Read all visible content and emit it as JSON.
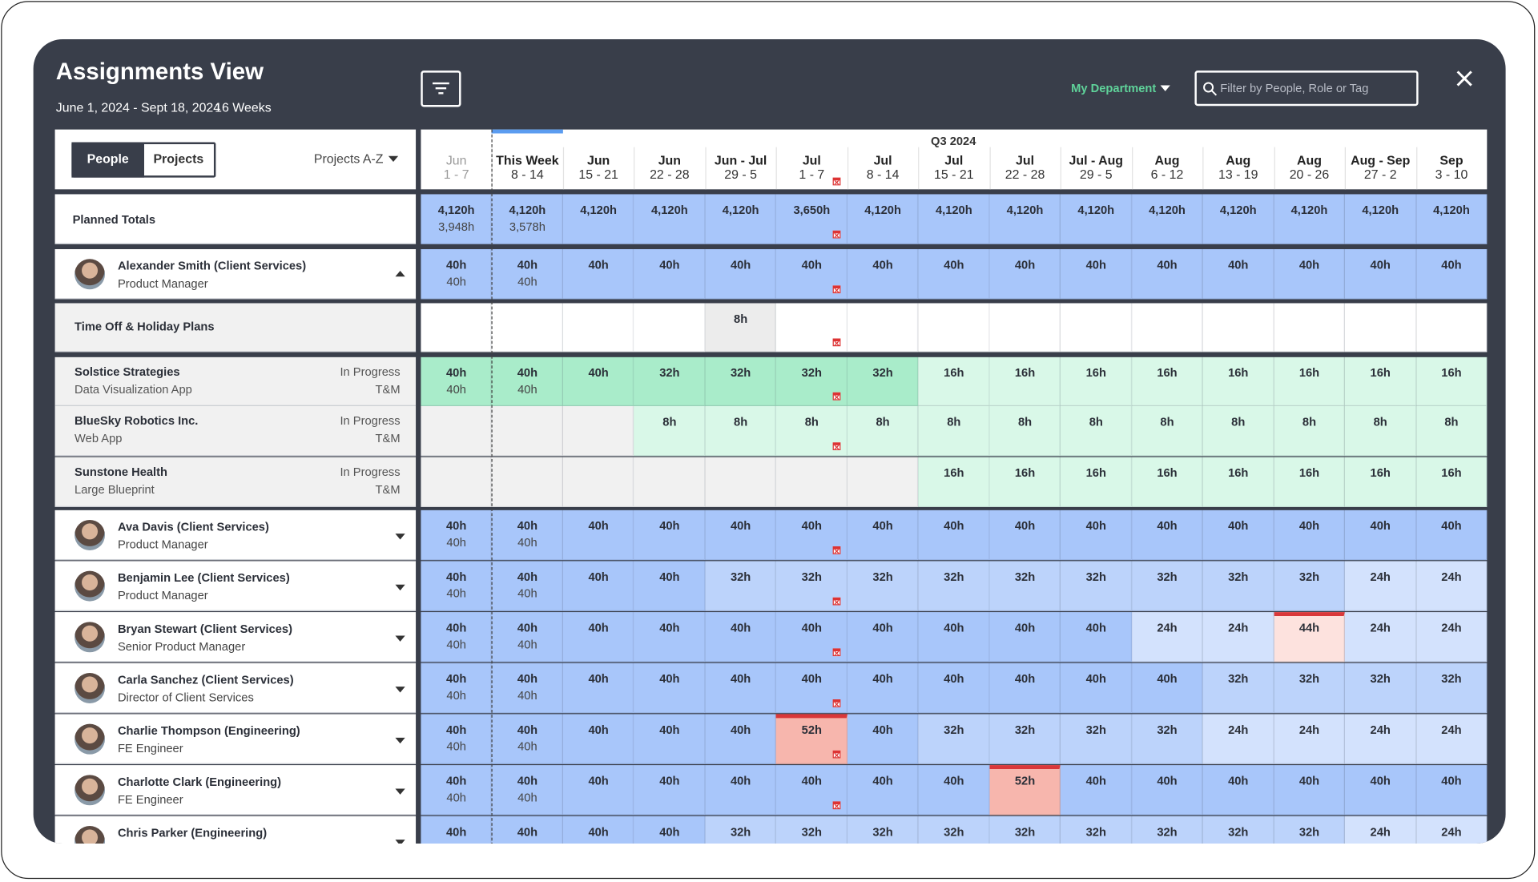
{
  "header": {
    "title": "Assignments View",
    "date_range": "June 1, 2024 - Sept 18, 2024",
    "weeks": "16 Weeks",
    "department": "My Department",
    "search_placeholder": "Filter by People, Role or Tag"
  },
  "toolbar": {
    "view_toggle": [
      "People",
      "Projects"
    ],
    "sort": "Projects A-Z"
  },
  "timeline": {
    "quarter": "Q3 2024",
    "weeks": [
      {
        "month": "Jun",
        "days": "1 - 7"
      },
      {
        "month": "This Week",
        "days": "8 - 14"
      },
      {
        "month": "Jun",
        "days": "15 - 21"
      },
      {
        "month": "Jun",
        "days": "22 - 28"
      },
      {
        "month": "Jun - Jul",
        "days": "29 - 5"
      },
      {
        "month": "Jul",
        "days": "1 - 7"
      },
      {
        "month": "Jul",
        "days": "8 - 14"
      },
      {
        "month": "Jul",
        "days": "15 - 21"
      },
      {
        "month": "Jul",
        "days": "22 - 28"
      },
      {
        "month": "Jul - Aug",
        "days": "29 - 5"
      },
      {
        "month": "Aug",
        "days": "6 - 12"
      },
      {
        "month": "Aug",
        "days": "13 - 19"
      },
      {
        "month": "Aug",
        "days": "20 - 26"
      },
      {
        "month": "Aug - Sep",
        "days": "27 - 2"
      },
      {
        "month": "Sep",
        "days": "3 - 10"
      }
    ]
  },
  "rows": [
    {
      "kind": "totals",
      "label": "Planned Totals",
      "cells": [
        [
          "4,120h",
          "3,948h"
        ],
        [
          "4,120h",
          "3,578h"
        ],
        [
          "4,120h"
        ],
        [
          "4,120h"
        ],
        [
          "4,120h"
        ],
        [
          "3,650h"
        ],
        [
          "4,120h"
        ],
        [
          "4,120h"
        ],
        [
          "4,120h"
        ],
        [
          "4,120h"
        ],
        [
          "4,120h"
        ],
        [
          "4,120h"
        ],
        [
          "4,120h"
        ],
        [
          "4,120h"
        ],
        [
          "4,120h"
        ]
      ]
    },
    {
      "kind": "person",
      "name": "Alexander Smith (Client Services)",
      "role": "Product Manager",
      "expanded": true,
      "cells": [
        [
          "40h",
          "40h"
        ],
        [
          "40h",
          "40h"
        ],
        [
          "40h"
        ],
        [
          "40h"
        ],
        [
          "40h"
        ],
        [
          "40h"
        ],
        [
          "40h"
        ],
        [
          "40h"
        ],
        [
          "40h"
        ],
        [
          "40h"
        ],
        [
          "40h"
        ],
        [
          "40h"
        ],
        [
          "40h"
        ],
        [
          "40h"
        ],
        [
          "40h"
        ]
      ]
    },
    {
      "kind": "time_off",
      "label": "Time Off & Holiday Plans",
      "cells": [
        [],
        [],
        [],
        [],
        [
          "8h"
        ],
        [],
        [],
        [],
        [],
        [],
        [],
        [],
        [],
        [],
        []
      ]
    },
    {
      "kind": "project",
      "client": "Solstice Strategies",
      "project": "Data Visualization App",
      "status": "In Progress",
      "billing": "T&M",
      "cells": [
        [
          "40h",
          "40h"
        ],
        [
          "40h",
          "40h"
        ],
        [
          "40h"
        ],
        [
          "32h"
        ],
        [
          "32h"
        ],
        [
          "32h"
        ],
        [
          "32h"
        ],
        [
          "16h"
        ],
        [
          "16h"
        ],
        [
          "16h"
        ],
        [
          "16h"
        ],
        [
          "16h"
        ],
        [
          "16h"
        ],
        [
          "16h"
        ],
        [
          "16h"
        ]
      ]
    },
    {
      "kind": "project",
      "client": "BlueSky Robotics Inc.",
      "project": "Web App",
      "status": "In Progress",
      "billing": "T&M",
      "cells": [
        [],
        [],
        [],
        [
          "8h"
        ],
        [
          "8h"
        ],
        [
          "8h"
        ],
        [
          "8h"
        ],
        [
          "8h"
        ],
        [
          "8h"
        ],
        [
          "8h"
        ],
        [
          "8h"
        ],
        [
          "8h"
        ],
        [
          "8h"
        ],
        [
          "8h"
        ],
        [
          "8h"
        ]
      ]
    },
    {
      "kind": "project",
      "client": "Sunstone Health",
      "project": "Large Blueprint",
      "status": "In Progress",
      "billing": "T&M",
      "cells": [
        [],
        [],
        [],
        [],
        [],
        [],
        [],
        [
          "16h"
        ],
        [
          "16h"
        ],
        [
          "16h"
        ],
        [
          "16h"
        ],
        [
          "16h"
        ],
        [
          "16h"
        ],
        [
          "16h"
        ],
        [
          "16h"
        ]
      ]
    },
    {
      "kind": "person",
      "name": "Ava Davis (Client Services)",
      "role": "Product Manager",
      "expanded": false,
      "cells": [
        [
          "40h",
          "40h"
        ],
        [
          "40h",
          "40h"
        ],
        [
          "40h"
        ],
        [
          "40h"
        ],
        [
          "40h"
        ],
        [
          "40h"
        ],
        [
          "40h"
        ],
        [
          "40h"
        ],
        [
          "40h"
        ],
        [
          "40h"
        ],
        [
          "40h"
        ],
        [
          "40h"
        ],
        [
          "40h"
        ],
        [
          "40h"
        ],
        [
          "40h"
        ]
      ]
    },
    {
      "kind": "person",
      "name": "Benjamin Lee (Client Services)",
      "role": "Product Manager",
      "expanded": false,
      "cells": [
        [
          "40h",
          "40h"
        ],
        [
          "40h",
          "40h"
        ],
        [
          "40h"
        ],
        [
          "40h"
        ],
        [
          "32h"
        ],
        [
          "32h"
        ],
        [
          "32h"
        ],
        [
          "32h"
        ],
        [
          "32h"
        ],
        [
          "32h"
        ],
        [
          "32h"
        ],
        [
          "32h"
        ],
        [
          "32h"
        ],
        [
          "24h"
        ],
        [
          "24h"
        ]
      ]
    },
    {
      "kind": "person",
      "name": "Bryan Stewart (Client Services)",
      "role": "Senior Product Manager",
      "expanded": false,
      "cells": [
        [
          "40h",
          "40h"
        ],
        [
          "40h",
          "40h"
        ],
        [
          "40h"
        ],
        [
          "40h"
        ],
        [
          "40h"
        ],
        [
          "40h"
        ],
        [
          "40h"
        ],
        [
          "40h"
        ],
        [
          "40h"
        ],
        [
          "40h"
        ],
        [
          "24h"
        ],
        [
          "24h"
        ],
        [
          "44h"
        ],
        [
          "24h"
        ],
        [
          "24h"
        ]
      ]
    },
    {
      "kind": "person",
      "name": "Carla Sanchez (Client Services)",
      "role": "Director of Client Services",
      "expanded": false,
      "cells": [
        [
          "40h",
          "40h"
        ],
        [
          "40h",
          "40h"
        ],
        [
          "40h"
        ],
        [
          "40h"
        ],
        [
          "40h"
        ],
        [
          "40h"
        ],
        [
          "40h"
        ],
        [
          "40h"
        ],
        [
          "40h"
        ],
        [
          "40h"
        ],
        [
          "40h"
        ],
        [
          "32h"
        ],
        [
          "32h"
        ],
        [
          "32h"
        ],
        [
          "32h"
        ]
      ]
    },
    {
      "kind": "person",
      "name": "Charlie Thompson (Engineering)",
      "role": "FE Engineer",
      "expanded": false,
      "cells": [
        [
          "40h",
          "40h"
        ],
        [
          "40h",
          "40h"
        ],
        [
          "40h"
        ],
        [
          "40h"
        ],
        [
          "40h"
        ],
        [
          "52h"
        ],
        [
          "40h"
        ],
        [
          "32h"
        ],
        [
          "32h"
        ],
        [
          "32h"
        ],
        [
          "32h"
        ],
        [
          "24h"
        ],
        [
          "24h"
        ],
        [
          "24h"
        ],
        [
          "24h"
        ]
      ]
    },
    {
      "kind": "person",
      "name": "Charlotte Clark (Engineering)",
      "role": "FE Engineer",
      "expanded": false,
      "cells": [
        [
          "40h",
          "40h"
        ],
        [
          "40h",
          "40h"
        ],
        [
          "40h"
        ],
        [
          "40h"
        ],
        [
          "40h"
        ],
        [
          "40h"
        ],
        [
          "40h"
        ],
        [
          "40h"
        ],
        [
          "52h"
        ],
        [
          "40h"
        ],
        [
          "40h"
        ],
        [
          "40h"
        ],
        [
          "40h"
        ],
        [
          "40h"
        ],
        [
          "40h"
        ]
      ]
    },
    {
      "kind": "person",
      "name": "Chris Parker (Engineering)",
      "expanded": false,
      "cells": [
        [
          "40h"
        ],
        [
          "40h"
        ],
        [
          "40h"
        ],
        [
          "40h"
        ],
        [
          "32h"
        ],
        [
          "32h"
        ],
        [
          "32h"
        ],
        [
          "32h"
        ],
        [
          "32h"
        ],
        [
          "32h"
        ],
        [
          "32h"
        ],
        [
          "32h"
        ],
        [
          "32h"
        ],
        [
          "24h"
        ],
        [
          "24h"
        ]
      ]
    }
  ]
}
